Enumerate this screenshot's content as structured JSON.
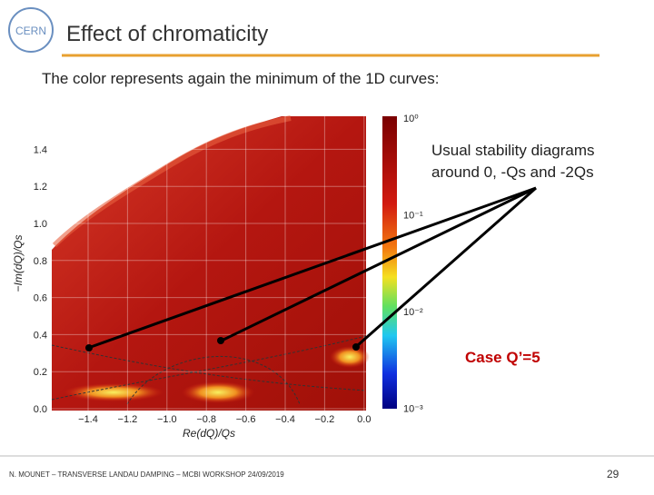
{
  "header": {
    "title": "Effect of chromaticity",
    "logo": "CERN"
  },
  "body": {
    "text": "The color represents again the minimum of the 1D curves:"
  },
  "figure": {
    "x_label": "Re(dQ)/Qs",
    "y_label": "−Im(dQ)/Qs",
    "xticks": [
      "−1.4",
      "−1.2",
      "−1.0",
      "−0.8",
      "−0.6",
      "−0.4",
      "−0.2",
      "0.0"
    ],
    "yticks": [
      "0.0",
      "0.2",
      "0.4",
      "0.6",
      "0.8",
      "1.0",
      "1.2",
      "1.4"
    ],
    "colorbar_ticks": [
      "10⁰",
      "10⁻¹",
      "10⁻²",
      "10⁻³"
    ]
  },
  "annotations": {
    "stability": [
      "Usual stability diagrams",
      "around 0, -Qs and -2Qs"
    ],
    "case": "Case Q’=5"
  },
  "footer": {
    "text": "N. MOUNET – TRANSVERSE LANDAU DAMPING – MCBI WORKSHOP 24/09/2019",
    "page": "29"
  }
}
